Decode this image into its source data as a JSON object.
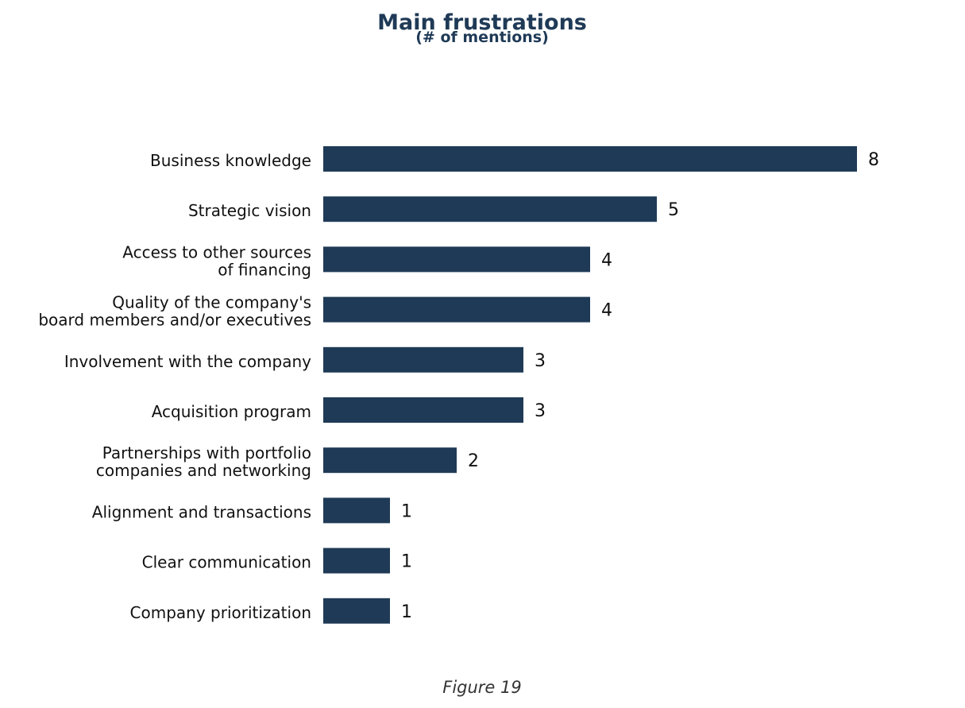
{
  "chart_data": {
    "type": "bar",
    "orientation": "horizontal",
    "title": "Main frustrations",
    "subtitle": "(# of mentions)",
    "caption": "Figure 19",
    "bar_color": "#1f3a56",
    "xlim": [
      0,
      8
    ],
    "grid": false,
    "categories": [
      [
        "Business knowledge"
      ],
      [
        "Strategic vision"
      ],
      [
        "Access to other sources",
        "of financing"
      ],
      [
        "Quality of the company's",
        "board members and/or executives"
      ],
      [
        "Involvement with the company"
      ],
      [
        "Acquisition program"
      ],
      [
        "Partnerships with portfolio",
        "companies and networking"
      ],
      [
        "Alignment and transactions"
      ],
      [
        "Clear communication"
      ],
      [
        "Company prioritization"
      ]
    ],
    "values": [
      8,
      5,
      4,
      4,
      3,
      3,
      2,
      1,
      1,
      1
    ]
  }
}
